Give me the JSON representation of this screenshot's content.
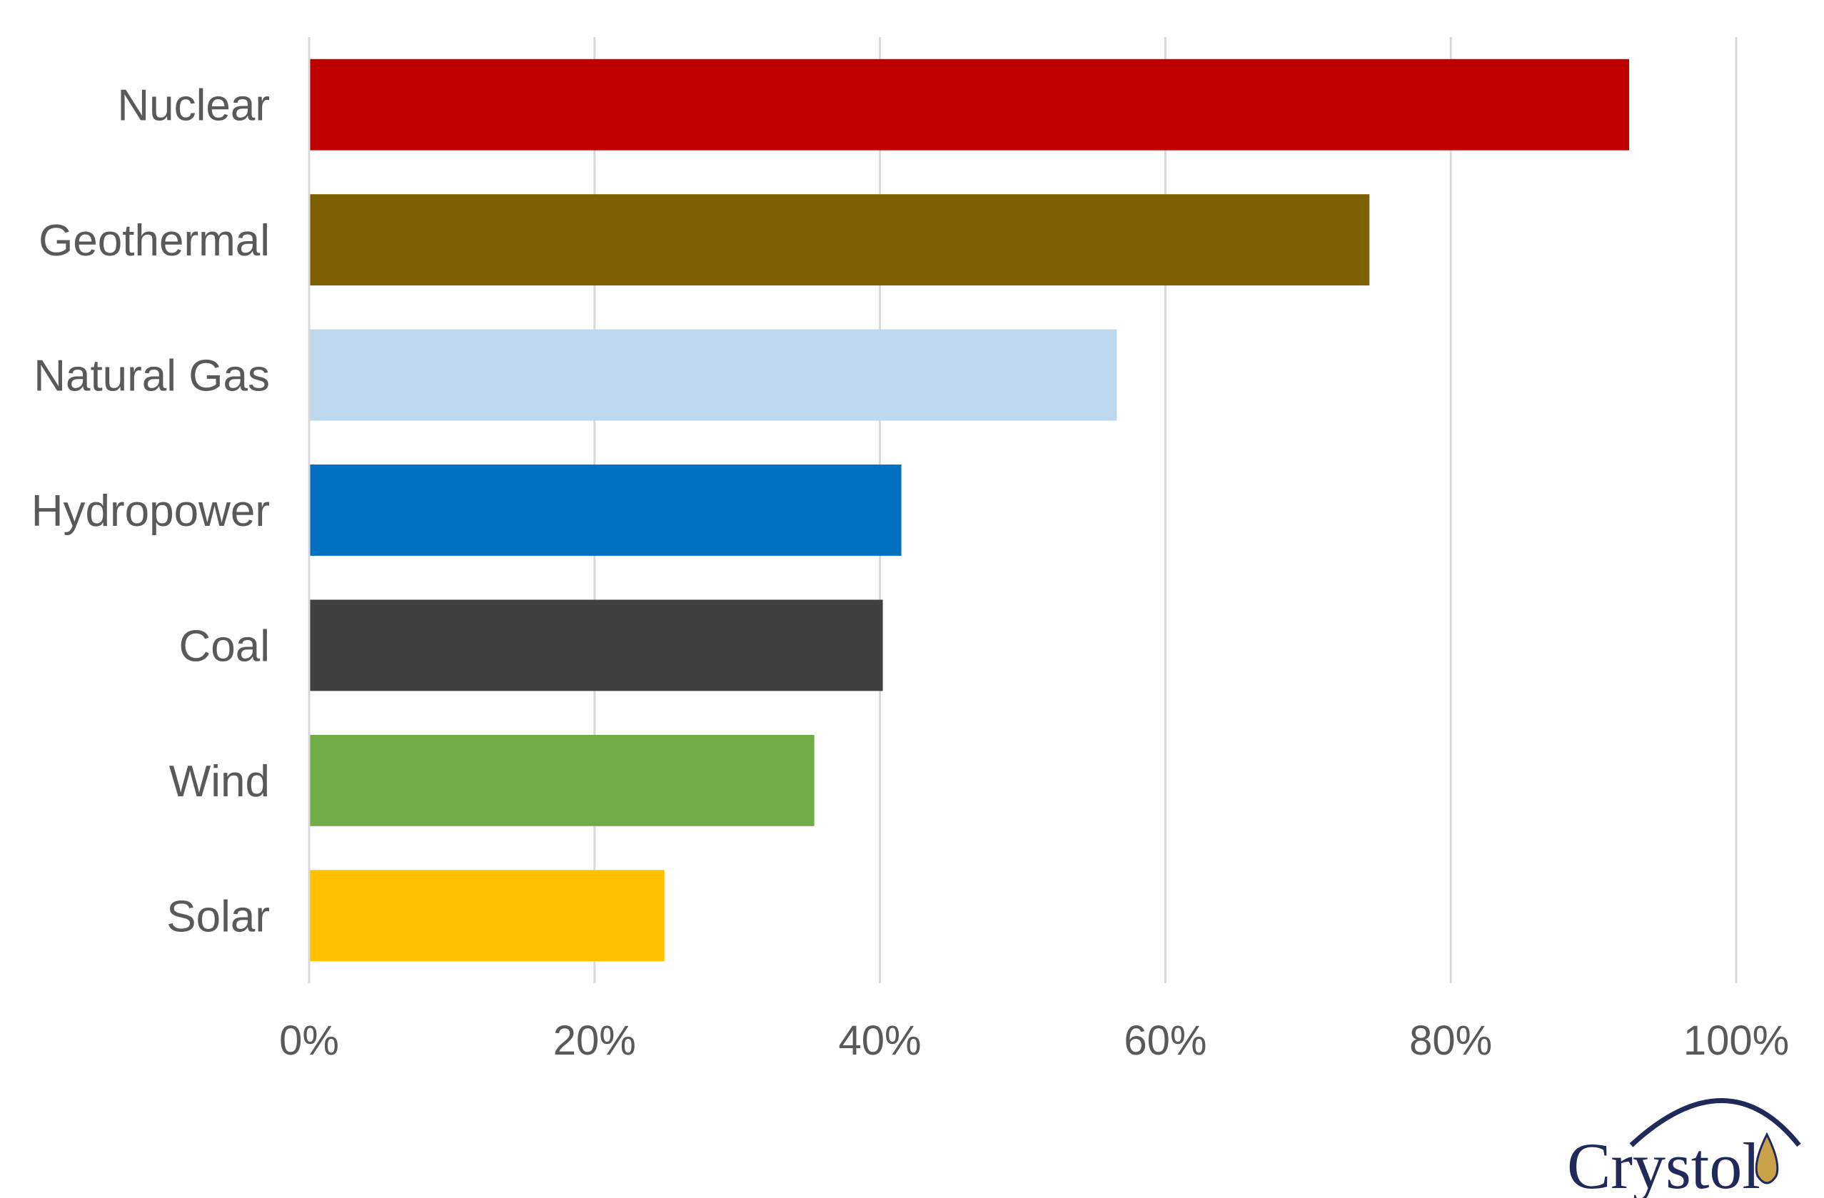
{
  "chart_data": {
    "type": "bar",
    "orientation": "horizontal",
    "categories": [
      "Nuclear",
      "Geothermal",
      "Natural Gas",
      "Hydropower",
      "Coal",
      "Wind",
      "Solar"
    ],
    "values": [
      92.5,
      74.3,
      56.6,
      41.5,
      40.2,
      35.4,
      24.9
    ],
    "colors": [
      "#c00000",
      "#7f6000",
      "#bdd7ee",
      "#0070c0",
      "#404040",
      "#70ad47",
      "#ffc000"
    ],
    "title": "",
    "xlabel": "",
    "ylabel": "",
    "xlim": [
      0,
      100
    ],
    "xticks": [
      "0%",
      "20%",
      "40%",
      "60%",
      "80%",
      "100%"
    ],
    "grid": true,
    "legend": "none"
  },
  "logo": {
    "text": "Crystol",
    "color": "#1f2a5a"
  }
}
